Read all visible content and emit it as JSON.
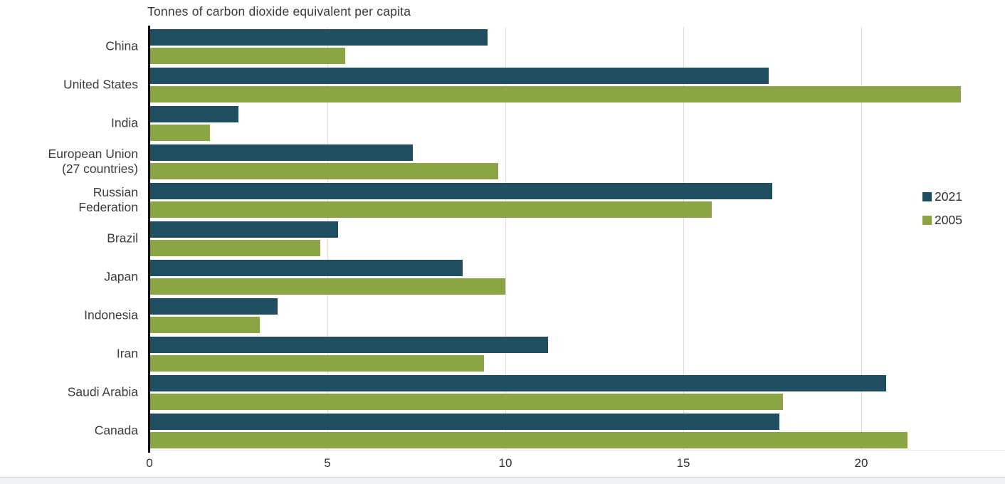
{
  "title": "Tonnes of carbon dioxide equivalent per capita",
  "colors": {
    "series_2021": "#1F4E63",
    "series_2005": "#8AA544",
    "gridline": "#DCDCDC",
    "axis": "#0D0D0D",
    "text": "#3A3A3A"
  },
  "chart_data": {
    "type": "bar",
    "orientation": "horizontal",
    "title": "Tonnes of carbon dioxide equivalent per capita",
    "categories": [
      "China",
      "United States",
      "India",
      "European Union\n(27 countries)",
      "Russian\nFederation",
      "Brazil",
      "Japan",
      "Indonesia",
      "Iran",
      "Saudi Arabia",
      "Canada"
    ],
    "series": [
      {
        "name": "2021",
        "color": "#1F4E63",
        "values": [
          9.5,
          17.4,
          2.5,
          7.4,
          17.5,
          5.3,
          8.8,
          3.6,
          11.2,
          20.7,
          17.7
        ]
      },
      {
        "name": "2005",
        "color": "#8AA544",
        "values": [
          5.5,
          22.8,
          1.7,
          9.8,
          15.8,
          4.8,
          10.0,
          3.1,
          9.4,
          17.8,
          21.3
        ]
      }
    ],
    "x_ticks": [
      0,
      5,
      10,
      15,
      20
    ],
    "xlim": [
      0,
      24
    ],
    "grid": "vertical",
    "legend_position": "right",
    "xlabel": "",
    "ylabel": ""
  }
}
